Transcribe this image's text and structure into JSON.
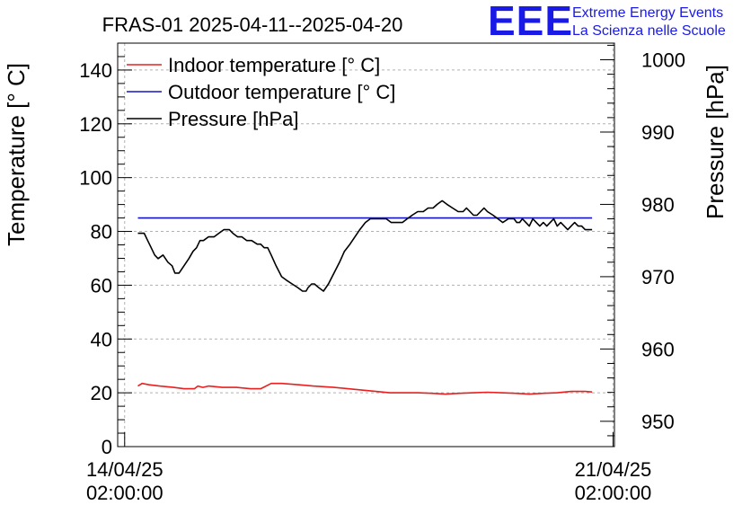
{
  "chart_data": {
    "type": "line",
    "title": "FRAS-01 2025-04-11--2025-04-20",
    "ylabel": "Temperature [° C]",
    "y2label": "Pressure [hPa]",
    "ylim": [
      0,
      150
    ],
    "y2lim": [
      946.5,
      1002.3
    ],
    "yticks": [
      0,
      20,
      40,
      60,
      80,
      100,
      120,
      140
    ],
    "y2ticks": [
      950,
      960,
      970,
      980,
      990,
      1000
    ],
    "xlim": [
      -0.1,
      7.02
    ],
    "xticks": [
      {
        "x": 0,
        "line1": "14/04/25",
        "line2": "02:00:00"
      },
      {
        "x": 7,
        "line1": "21/04/25",
        "line2": "02:00:00"
      }
    ],
    "grid": true,
    "legend_position": "top-left",
    "series": [
      {
        "name": "Indoor temperature [° C]",
        "color": "#e8201f",
        "axis": "left",
        "x": [
          0.19,
          0.25,
          0.35,
          0.5,
          0.7,
          0.85,
          1.0,
          1.05,
          1.12,
          1.2,
          1.4,
          1.6,
          1.8,
          1.95,
          2.1,
          2.25,
          2.5,
          2.7,
          3.0,
          3.2,
          3.4,
          3.6,
          3.8,
          4.0,
          4.2,
          4.4,
          4.6,
          4.8,
          5.0,
          5.2,
          5.4,
          5.6,
          5.8,
          6.0,
          6.2,
          6.4,
          6.6,
          6.7
        ],
        "y": [
          22.5,
          23.5,
          23.0,
          22.5,
          22.0,
          21.5,
          21.5,
          22.5,
          22.0,
          22.5,
          22.0,
          22.0,
          21.5,
          21.5,
          23.5,
          23.5,
          23.0,
          22.5,
          22.0,
          21.5,
          21.0,
          20.5,
          20.0,
          20.0,
          20.0,
          19.8,
          19.5,
          19.8,
          20.0,
          20.2,
          20.0,
          19.8,
          19.5,
          19.8,
          20.0,
          20.5,
          20.5,
          20.3
        ]
      },
      {
        "name": "Outdoor temperature [° C]",
        "color": "#1515c8",
        "axis": "left",
        "x": [
          0.19,
          6.7
        ],
        "y": [
          85,
          85
        ]
      },
      {
        "name": "Pressure [hPa]",
        "color": "#000000",
        "axis": "right",
        "x": [
          0.19,
          0.28,
          0.33,
          0.38,
          0.43,
          0.48,
          0.55,
          0.62,
          0.68,
          0.72,
          0.78,
          0.85,
          0.92,
          0.98,
          1.03,
          1.08,
          1.13,
          1.2,
          1.28,
          1.35,
          1.42,
          1.5,
          1.55,
          1.62,
          1.68,
          1.75,
          1.82,
          1.9,
          1.95,
          2.0,
          2.05,
          2.1,
          2.17,
          2.25,
          2.32,
          2.4,
          2.48,
          2.55,
          2.6,
          2.63,
          2.68,
          2.72,
          2.78,
          2.85,
          2.92,
          3.0,
          3.08,
          3.15,
          3.23,
          3.3,
          3.37,
          3.45,
          3.52,
          3.6,
          3.68,
          3.75,
          3.82,
          3.9,
          3.98,
          4.05,
          4.12,
          4.2,
          4.28,
          4.35,
          4.42,
          4.48,
          4.55,
          4.62,
          4.7,
          4.78,
          4.85,
          4.9,
          4.95,
          5.0,
          5.05,
          5.1,
          5.15,
          5.2,
          5.28,
          5.35,
          5.42,
          5.5,
          5.58,
          5.62,
          5.66,
          5.7,
          5.75,
          5.8,
          5.85,
          5.9,
          5.95,
          6.0,
          6.05,
          6.1,
          6.15,
          6.2,
          6.25,
          6.3,
          6.35,
          6.4,
          6.45,
          6.5,
          6.55,
          6.6,
          6.65,
          6.7
        ],
        "y": [
          976.0,
          976.0,
          975.0,
          974.0,
          973.0,
          972.5,
          973.0,
          972.0,
          971.5,
          970.5,
          970.5,
          971.5,
          972.5,
          973.5,
          974.0,
          975.0,
          975.0,
          975.5,
          975.5,
          976.0,
          976.5,
          976.5,
          976.0,
          975.5,
          975.5,
          975.0,
          975.0,
          974.5,
          974.5,
          974.0,
          974.0,
          973.0,
          971.5,
          970.0,
          969.5,
          969.0,
          968.5,
          968.0,
          968.0,
          968.5,
          969.0,
          969.0,
          968.5,
          968.0,
          969.0,
          970.5,
          972.0,
          973.5,
          974.5,
          975.5,
          976.5,
          977.5,
          978.0,
          978.0,
          978.0,
          978.0,
          977.5,
          977.5,
          977.5,
          978.0,
          978.5,
          979.0,
          979.0,
          979.5,
          979.5,
          980.0,
          980.5,
          980.0,
          979.5,
          979.0,
          979.0,
          979.5,
          979.0,
          978.5,
          978.5,
          979.0,
          979.5,
          979.0,
          978.5,
          978.0,
          977.5,
          978.0,
          978.0,
          977.5,
          977.5,
          978.0,
          977.5,
          977.0,
          978.0,
          977.5,
          977.0,
          977.5,
          977.0,
          977.5,
          978.0,
          977.0,
          977.5,
          977.0,
          976.5,
          977.0,
          977.5,
          977.0,
          977.0,
          976.5,
          976.5,
          976.5
        ]
      }
    ]
  },
  "logo": {
    "mark": "EEE",
    "line1": "Extreme Energy Events",
    "line2": "La Scienza nelle Scuole"
  }
}
